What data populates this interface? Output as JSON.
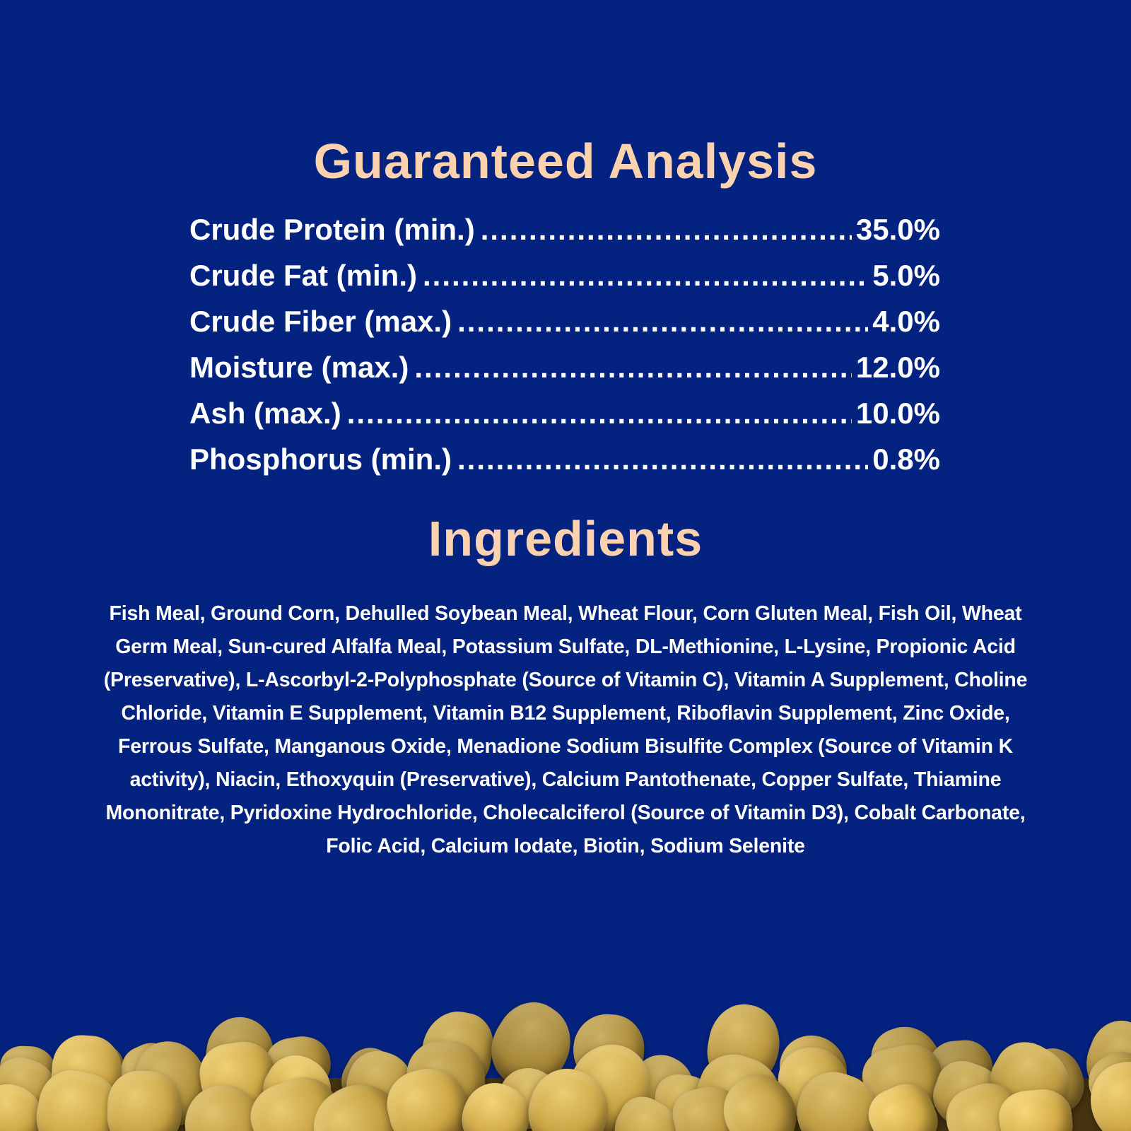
{
  "colors": {
    "background": "#04227f",
    "heading": "#fcd2ae",
    "text": "#ffffff",
    "pellet_light": "#dcc06c",
    "pellet_base": "#bd9a40",
    "pellet_dark": "#74571b",
    "pellet_shadow": "#463410"
  },
  "guaranteed_analysis": {
    "title": "Guaranteed Analysis",
    "leader_dots": "........................................................................................................................",
    "rows": [
      {
        "label": "Crude Protein (min.)",
        "value": "35.0%"
      },
      {
        "label": "Crude Fat (min.)",
        "value": "5.0%"
      },
      {
        "label": "Crude Fiber (max.)",
        "value": "4.0%"
      },
      {
        "label": "Moisture (max.)",
        "value": "12.0%"
      },
      {
        "label": "Ash (max.)",
        "value": "10.0%"
      },
      {
        "label": "Phosphorus (min.)",
        "value": "0.8%"
      }
    ]
  },
  "ingredients": {
    "title": "Ingredients",
    "text": "Fish Meal, Ground Corn, Dehulled Soybean Meal, Wheat Flour, Corn Gluten Meal, Fish Oil, Wheat Germ Meal, Sun-cured Alfalfa Meal, Potassium Sulfate, DL-Methionine, L-Lysine, Propionic Acid (Preservative), L-Ascorbyl-2-Polyphosphate (Source of Vitamin C), Vitamin A Supplement, Choline Chloride, Vitamin E Supplement, Vitamin B12 Supplement, Riboflavin Supplement, Zinc Oxide, Ferrous Sulfate, Manganous Oxide, Menadione Sodium Bisulfite Complex (Source of Vitamin K activity), Niacin, Ethoxyquin (Preservative), Calcium Pantothenate, Copper Sulfate, Thiamine Mononitrate, Pyridoxine Hydrochloride, Cholecalciferol (Source of Vitamin D3), Cobalt Carbonate, Folic Acid, Calcium Iodate, Biotin, Sodium Selenite"
  },
  "photo": {
    "alt": "pile of golden fish food pellets along the bottom edge"
  }
}
